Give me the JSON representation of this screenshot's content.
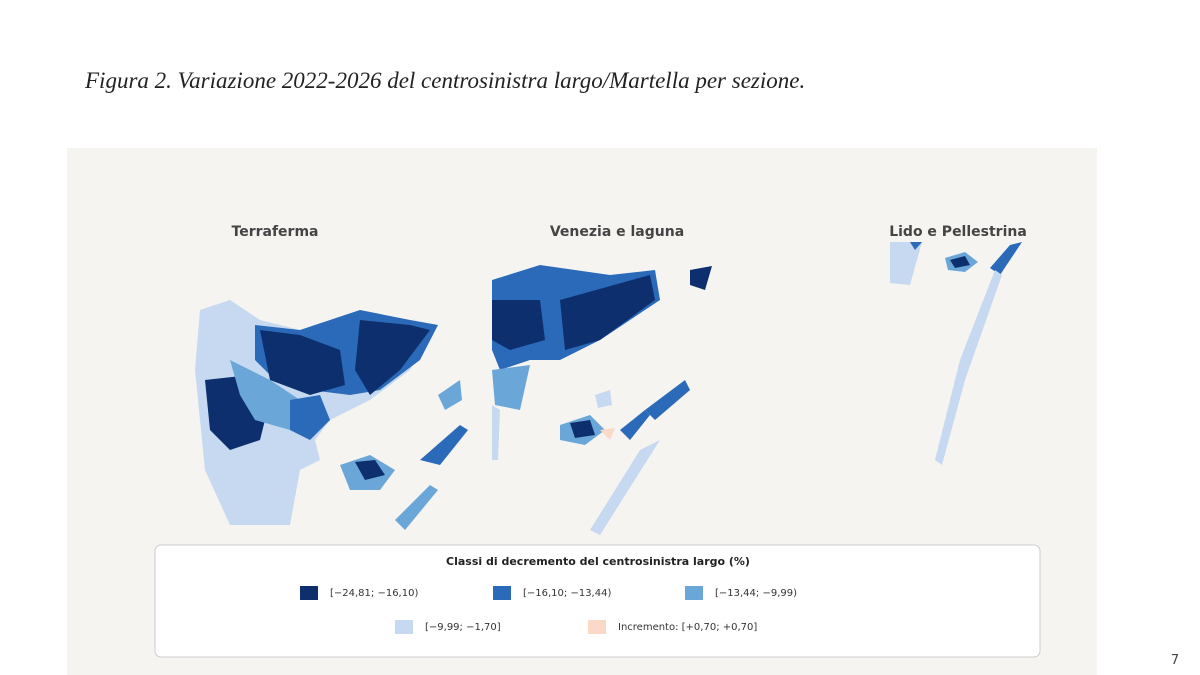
{
  "title": "Figura 2. Variazione 2022-2026 del centrosinistra largo/Martella per sezione.",
  "maps": [
    {
      "title": "Terraferma"
    },
    {
      "title": "Venezia e laguna"
    },
    {
      "title": "Lido e Pellestrina"
    }
  ],
  "legend": {
    "title": "Classi di decremento del centrosinistra largo (%)",
    "items": [
      {
        "label": "[−24,81; −16,10)",
        "color": "#0d2f6e"
      },
      {
        "label": "[−16,10; −13,44)",
        "color": "#2a6ab8"
      },
      {
        "label": "[−13,44; −9,99)",
        "color": "#6aa6d8"
      },
      {
        "label": "[−9,99; −1,70]",
        "color": "#c6d9f0"
      },
      {
        "label": "Incremento: [+0,70; +0,70]",
        "color": "#fbd9c9"
      }
    ]
  },
  "page_number": "7"
}
